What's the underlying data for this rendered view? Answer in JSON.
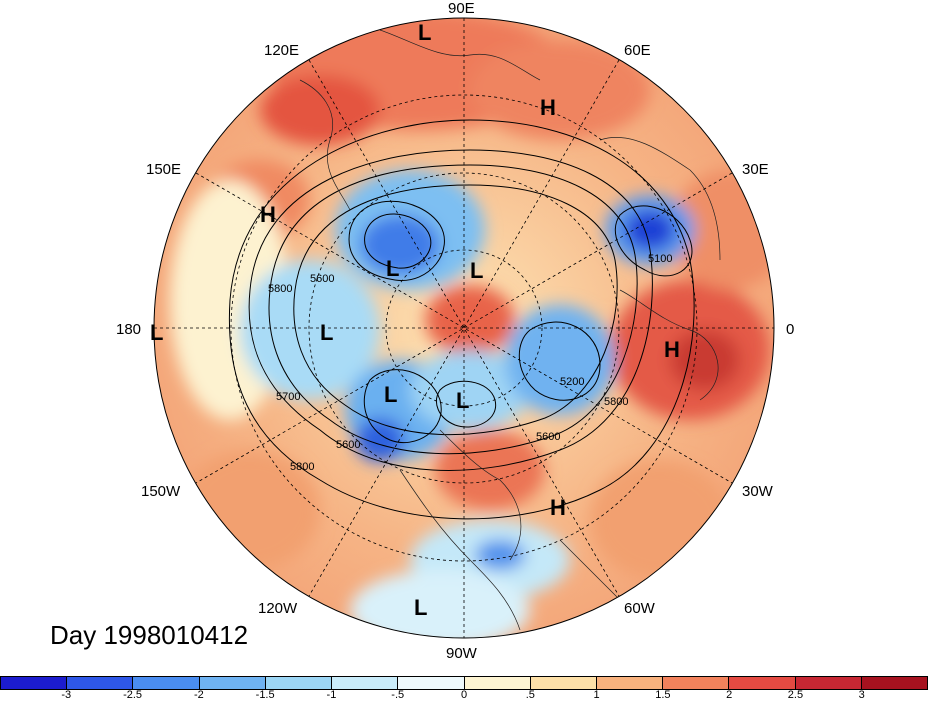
{
  "title": "Day 1998010412",
  "longitude_labels": {
    "lon_90e": "90E",
    "lon_60e": "60E",
    "lon_30e": "30E",
    "lon_0": "0",
    "lon_30w": "30W",
    "lon_60w": "60W",
    "lon_90w": "90W",
    "lon_120w": "120W",
    "lon_150w": "150W",
    "lon_180": "180",
    "lon_150e": "150E",
    "lon_120e": "120E"
  },
  "contour_labels": [
    "5800",
    "5600",
    "5700",
    "5600",
    "5800",
    "5200",
    "5600",
    "5800",
    "5100"
  ],
  "pressure_centers": [
    "L",
    "L",
    "L",
    "L",
    "L",
    "L",
    "L",
    "L",
    "H",
    "H",
    "H",
    "H"
  ],
  "colorbar": {
    "labels": [
      "-3",
      "-2.5",
      "-2",
      "-1.5",
      "-1",
      "-.5",
      "0",
      ".5",
      "1",
      "1.5",
      "2",
      "2.5",
      "3"
    ],
    "colors": [
      "#1c1ccf",
      "#2e57e8",
      "#4a8df0",
      "#6fb3f2",
      "#9cd6f5",
      "#c9ecfa",
      "#eef9fc",
      "#fdf4d2",
      "#fde0a8",
      "#f8b27e",
      "#f2825c",
      "#e44a42",
      "#c72733",
      "#a6121f"
    ]
  }
}
